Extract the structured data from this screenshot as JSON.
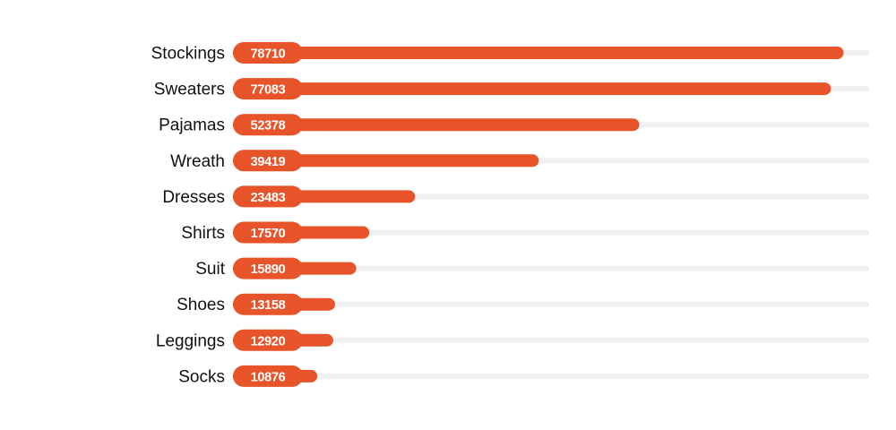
{
  "chart_data": {
    "type": "bar",
    "orientation": "horizontal",
    "categories": [
      "Stockings",
      "Sweaters",
      "Pajamas",
      "Wreath",
      "Dresses",
      "Shirts",
      "Suit",
      "Shoes",
      "Leggings",
      "Socks"
    ],
    "values": [
      78710,
      77083,
      52378,
      39419,
      23483,
      17570,
      15890,
      13158,
      12920,
      10876
    ],
    "title": "",
    "xlabel": "",
    "ylabel": "",
    "xlim": [
      0,
      82000
    ],
    "grid": false,
    "legend": "none",
    "data_labels": "inside-start",
    "colors": {
      "bar": "#E8542A",
      "track": "#EFEFEF",
      "label_text": "#111111",
      "value_text": "#FFFFFF"
    }
  }
}
